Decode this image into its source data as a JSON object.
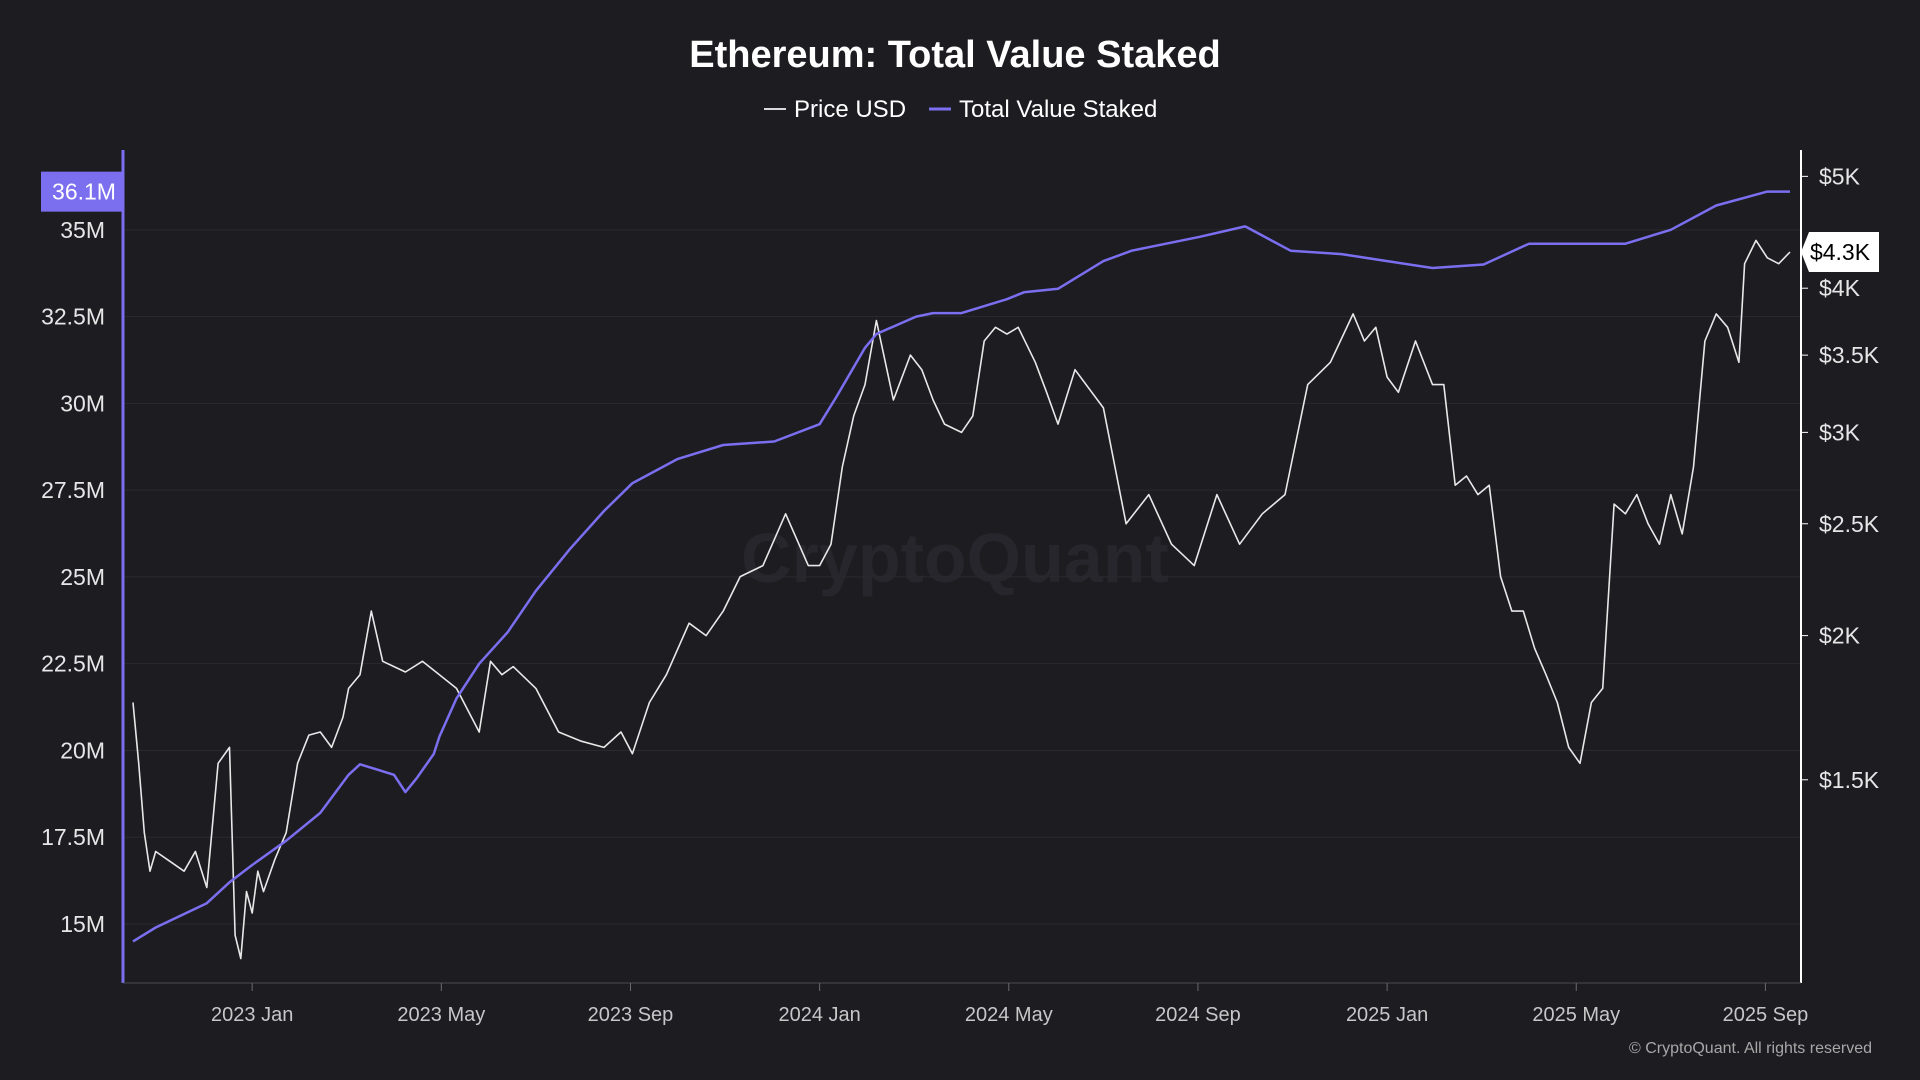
{
  "chart_data": {
    "type": "line",
    "title": "Ethereum: Total Value Staked",
    "watermark": "CryptoQuant",
    "credit": "© CryptoQuant. All rights reserved",
    "legend": [
      {
        "name": "Price USD",
        "color": "#d9d9d9"
      },
      {
        "name": "Total Value Staked",
        "color": "#7b6ff0"
      }
    ],
    "x_ticks": [
      "2023 Jan",
      "2023 May",
      "2023 Sep",
      "2024 Jan",
      "2024 May",
      "2024 Sep",
      "2025 Jan",
      "2025 May",
      "2025 Sep"
    ],
    "left_axis": {
      "ticks": [
        15,
        17.5,
        20,
        22.5,
        25,
        27.5,
        30,
        32.5,
        35
      ],
      "tick_labels": [
        "15M",
        "17.5M",
        "20M",
        "22.5M",
        "25M",
        "27.5M",
        "30M",
        "32.5M",
        "35M"
      ],
      "unit": "M",
      "range": [
        13.3,
        37.3
      ],
      "current_value": 36.1,
      "current_label": "36.1M",
      "color": "#7b6ff0"
    },
    "right_axis": {
      "ticks": [
        1500,
        2000,
        2500,
        3000,
        3500,
        4000,
        5000
      ],
      "tick_labels": [
        "$1.5K",
        "$2K",
        "$2.5K",
        "$3K",
        "$3.5K",
        "$4K",
        "$5K"
      ],
      "scale": "log",
      "range": [
        1000,
        5270
      ],
      "current_value": 4300,
      "current_label": "$4.3K",
      "color": "#ffffff"
    },
    "x_range": [
      2022.79,
      2025.71
    ],
    "series": [
      {
        "name": "Total Value Staked",
        "axis": "left",
        "unit": "M ETH",
        "x": [
          2022.79,
          2022.83,
          2022.92,
          2022.96,
          2023.0,
          2023.06,
          2023.12,
          2023.17,
          2023.19,
          2023.25,
          2023.27,
          2023.29,
          2023.32,
          2023.33,
          2023.36,
          2023.4,
          2023.45,
          2023.5,
          2023.56,
          2023.62,
          2023.67,
          2023.75,
          2023.83,
          2023.92,
          2024.0,
          2024.03,
          2024.08,
          2024.1,
          2024.17,
          2024.2,
          2024.25,
          2024.33,
          2024.36,
          2024.42,
          2024.5,
          2024.55,
          2024.67,
          2024.75,
          2024.83,
          2024.92,
          2025.0,
          2025.08,
          2025.17,
          2025.25,
          2025.33,
          2025.42,
          2025.5,
          2025.58,
          2025.67,
          2025.71
        ],
        "values": [
          14.5,
          14.9,
          15.6,
          16.2,
          16.7,
          17.4,
          18.2,
          19.3,
          19.6,
          19.3,
          18.8,
          19.2,
          19.9,
          20.4,
          21.5,
          22.5,
          23.4,
          24.6,
          25.8,
          26.9,
          27.7,
          28.4,
          28.8,
          28.9,
          29.4,
          30.2,
          31.6,
          32.0,
          32.5,
          32.6,
          32.6,
          33.0,
          33.2,
          33.3,
          34.1,
          34.4,
          34.8,
          35.1,
          34.4,
          34.3,
          34.1,
          33.9,
          34.0,
          34.6,
          34.6,
          34.6,
          35.0,
          35.7,
          36.1,
          36.1
        ]
      },
      {
        "name": "Price USD",
        "axis": "right",
        "unit": "USD",
        "x": [
          2022.79,
          2022.8,
          2022.81,
          2022.82,
          2022.83,
          2022.85,
          2022.88,
          2022.9,
          2022.92,
          2022.94,
          2022.96,
          2022.97,
          2022.98,
          2022.99,
          2023.0,
          2023.01,
          2023.02,
          2023.04,
          2023.06,
          2023.08,
          2023.1,
          2023.12,
          2023.14,
          2023.16,
          2023.17,
          2023.19,
          2023.21,
          2023.23,
          2023.25,
          2023.27,
          2023.3,
          2023.33,
          2023.36,
          2023.4,
          2023.42,
          2023.44,
          2023.46,
          2023.5,
          2023.54,
          2023.58,
          2023.62,
          2023.65,
          2023.67,
          2023.7,
          2023.73,
          2023.77,
          2023.8,
          2023.83,
          2023.86,
          2023.9,
          2023.94,
          2023.98,
          2024.0,
          2024.02,
          2024.04,
          2024.06,
          2024.08,
          2024.1,
          2024.13,
          2024.16,
          2024.18,
          2024.2,
          2024.22,
          2024.25,
          2024.27,
          2024.29,
          2024.31,
          2024.33,
          2024.35,
          2024.38,
          2024.4,
          2024.42,
          2024.45,
          2024.5,
          2024.54,
          2024.58,
          2024.62,
          2024.66,
          2024.7,
          2024.74,
          2024.78,
          2024.82,
          2024.86,
          2024.9,
          2024.94,
          2024.96,
          2024.98,
          2025.0,
          2025.02,
          2025.05,
          2025.08,
          2025.1,
          2025.12,
          2025.14,
          2025.16,
          2025.18,
          2025.2,
          2025.22,
          2025.24,
          2025.26,
          2025.28,
          2025.3,
          2025.32,
          2025.34,
          2025.36,
          2025.38,
          2025.4,
          2025.42,
          2025.44,
          2025.46,
          2025.48,
          2025.5,
          2025.52,
          2025.54,
          2025.56,
          2025.58,
          2025.6,
          2025.62,
          2025.63,
          2025.65,
          2025.67,
          2025.69,
          2025.71
        ],
        "values": [
          1750,
          1550,
          1350,
          1250,
          1300,
          1280,
          1250,
          1300,
          1210,
          1550,
          1600,
          1100,
          1050,
          1200,
          1150,
          1250,
          1200,
          1280,
          1350,
          1550,
          1640,
          1650,
          1600,
          1700,
          1800,
          1850,
          2100,
          1900,
          1880,
          1860,
          1900,
          1850,
          1800,
          1650,
          1900,
          1850,
          1880,
          1800,
          1650,
          1620,
          1600,
          1650,
          1580,
          1750,
          1850,
          2050,
          2000,
          2100,
          2250,
          2300,
          2550,
          2300,
          2300,
          2400,
          2800,
          3100,
          3300,
          3750,
          3200,
          3500,
          3400,
          3200,
          3050,
          3000,
          3100,
          3600,
          3700,
          3650,
          3700,
          3450,
          3250,
          3050,
          3400,
          3150,
          2500,
          2650,
          2400,
          2300,
          2650,
          2400,
          2550,
          2650,
          3300,
          3450,
          3800,
          3600,
          3700,
          3350,
          3250,
          3600,
          3300,
          3300,
          2700,
          2750,
          2650,
          2700,
          2250,
          2100,
          2100,
          1950,
          1850,
          1750,
          1600,
          1550,
          1750,
          1800,
          2600,
          2550,
          2650,
          2500,
          2400,
          2650,
          2450,
          2800,
          3600,
          3800,
          3700,
          3450,
          4200,
          4400,
          4250,
          4200,
          4300
        ]
      }
    ]
  }
}
